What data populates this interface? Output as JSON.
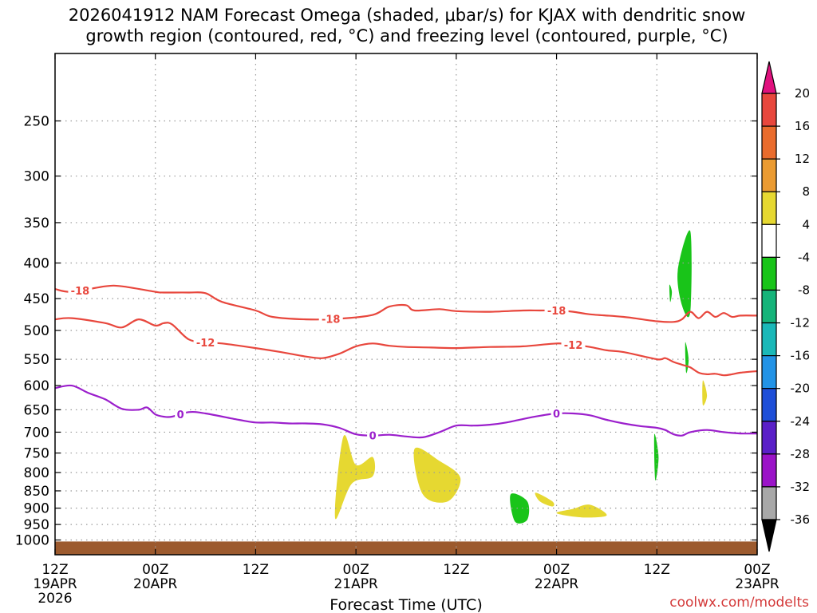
{
  "chart_data": {
    "type": "contour",
    "title_lines": [
      "2026041912 NAM Forecast Omega (shaded, μbar/s) for KJAX with dendritic snow",
      "growth region (contoured, red, °C) and freezing level (contoured, purple, °C)"
    ],
    "xlabel": "Forecast Time (UTC)",
    "credit": "coolwx.com/modelts",
    "xlim": [
      0,
      84
    ],
    "x_ticks": [
      {
        "h": 0,
        "line1": "12Z",
        "line2": "19APR",
        "line3": "2026"
      },
      {
        "h": 12,
        "line1": "00Z",
        "line2": "20APR",
        "line3": ""
      },
      {
        "h": 24,
        "line1": "12Z",
        "line2": "",
        "line3": ""
      },
      {
        "h": 36,
        "line1": "00Z",
        "line2": "21APR",
        "line3": ""
      },
      {
        "h": 48,
        "line1": "12Z",
        "line2": "",
        "line3": ""
      },
      {
        "h": 60,
        "line1": "00Z",
        "line2": "22APR",
        "line3": ""
      },
      {
        "h": 72,
        "line1": "12Z",
        "line2": "",
        "line3": ""
      },
      {
        "h": 84,
        "line1": "00Z",
        "line2": "23APR",
        "line3": ""
      }
    ],
    "y_axis": {
      "scale": "log",
      "top_hpa": 200,
      "bottom_hpa": 1050,
      "reversed": true
    },
    "y_ticks": [
      "250",
      "300",
      "350",
      "400",
      "450",
      "500",
      "550",
      "600",
      "650",
      "700",
      "750",
      "800",
      "850",
      "900",
      "950",
      "1000"
    ],
    "grid": true,
    "contours": [
      {
        "label": "-18",
        "color": "#e8473d",
        "x": [
          0,
          2,
          6,
          8,
          12,
          13,
          16,
          18,
          20,
          24,
          26,
          30,
          34,
          38,
          40,
          42,
          43,
          46,
          48,
          52,
          56,
          58,
          60,
          62,
          64,
          68,
          72,
          74,
          75,
          76,
          77,
          78,
          79,
          80,
          81,
          82,
          84
        ],
        "y": [
          436,
          440,
          432,
          432,
          440,
          441,
          441,
          442,
          455,
          468,
          478,
          482,
          481,
          475,
          462,
          460,
          468,
          466,
          469,
          470,
          468,
          468,
          468,
          470,
          474,
          478,
          485,
          486,
          482,
          470,
          480,
          470,
          478,
          472,
          478,
          476,
          476
        ],
        "label_x": [
          3,
          33,
          60
        ]
      },
      {
        "label": "-12",
        "color": "#e8473d",
        "x": [
          0,
          2,
          6,
          8,
          10,
          12,
          13,
          14,
          16,
          18,
          20,
          24,
          27,
          30,
          32,
          34,
          36,
          38,
          40,
          42,
          45,
          48,
          52,
          56,
          60,
          62,
          64,
          66,
          68,
          72,
          73,
          74,
          75,
          76,
          77,
          78,
          79,
          80,
          81,
          82,
          84
        ],
        "y": [
          482,
          480,
          488,
          495,
          482,
          492,
          488,
          490,
          515,
          520,
          522,
          530,
          537,
          545,
          548,
          540,
          527,
          522,
          526,
          528,
          529,
          530,
          528,
          527,
          522,
          524,
          528,
          534,
          537,
          550,
          548,
          555,
          560,
          565,
          575,
          578,
          577,
          580,
          578,
          575,
          572
        ],
        "label_x": [
          18,
          62
        ]
      },
      {
        "label": "0",
        "color": "#9b1fcc",
        "x": [
          0,
          2,
          4,
          6,
          8,
          10,
          11,
          12,
          13,
          14,
          16,
          18,
          22,
          24,
          26,
          28,
          30,
          32,
          34,
          36,
          38,
          40,
          42,
          44,
          46,
          48,
          50,
          52,
          54,
          56,
          58,
          60,
          62,
          64,
          66,
          68,
          70,
          72,
          73,
          74,
          75,
          76,
          78,
          80,
          82,
          84
        ],
        "y": [
          605,
          600,
          615,
          628,
          648,
          650,
          645,
          660,
          665,
          665,
          655,
          658,
          672,
          678,
          678,
          680,
          680,
          682,
          690,
          705,
          708,
          706,
          710,
          712,
          700,
          685,
          685,
          683,
          678,
          670,
          663,
          658,
          658,
          662,
          672,
          680,
          686,
          690,
          695,
          705,
          708,
          700,
          695,
          700,
          703,
          703
        ],
        "label_x": [
          15,
          38,
          60
        ]
      }
    ],
    "shaded_regions": [
      {
        "band": "4 to 8",
        "color": "#e6d831",
        "t": [
          34.5,
          36,
          38,
          38,
          35.5,
          33.5
        ],
        "p": [
          710,
          780,
          760,
          810,
          830,
          930
        ]
      },
      {
        "band": "4 to 8",
        "color": "#e6d831",
        "t": [
          43,
          46,
          48.5,
          47,
          44
        ],
        "p": [
          740,
          770,
          815,
          880,
          860
        ]
      },
      {
        "band": "4 to 8",
        "color": "#e6d831",
        "t": [
          57.5,
          59.5,
          59.5,
          58
        ],
        "p": [
          855,
          880,
          895,
          880
        ]
      },
      {
        "band": "4 to 8",
        "color": "#e6d831",
        "t": [
          60,
          62,
          64,
          66,
          63
        ],
        "p": [
          915,
          902,
          890,
          922,
          928
        ]
      },
      {
        "band": "4 to 8",
        "color": "#e6d831",
        "t": [
          77.5,
          78,
          77.5
        ],
        "p": [
          590,
          620,
          640
        ]
      },
      {
        "band": "-8 to -4",
        "color": "#19c419",
        "t": [
          54.5,
          56.5,
          56.5,
          55
        ],
        "p": [
          860,
          880,
          935,
          940
        ]
      },
      {
        "band": "-8 to -4",
        "color": "#19c419",
        "t": [
          71.7,
          72.2,
          71.8
        ],
        "p": [
          705,
          760,
          820
        ]
      },
      {
        "band": "-8 to -4",
        "color": "#19c419",
        "t": [
          74.5,
          76,
          76,
          75
        ],
        "p": [
          410,
          360,
          470,
          460
        ]
      },
      {
        "band": "-8 to -4",
        "color": "#19c419",
        "t": [
          73.5,
          73.8,
          73.6
        ],
        "p": [
          430,
          440,
          455
        ]
      },
      {
        "band": "-8 to -4",
        "color": "#19c419",
        "t": [
          75.4,
          75.8,
          75.5
        ],
        "p": [
          520,
          550,
          575
        ]
      }
    ],
    "terrain": {
      "color": "#9c5a2e",
      "top_hpa": 1005
    },
    "colorbar": {
      "labels": [
        "20",
        "16",
        "12",
        "8",
        "4",
        "-4",
        "-8",
        "-12",
        "-16",
        "-20",
        "-24",
        "-28",
        "-32",
        "-36"
      ],
      "colors": [
        "#e8473d",
        "#ea6c2d",
        "#eb9b32",
        "#e6d831",
        "#ffffff",
        "#19c419",
        "#15b47a",
        "#1ab8b8",
        "#2293e6",
        "#1e4fd8",
        "#5a1fc8",
        "#9b13c8",
        "#a8a8a8"
      ],
      "top_triangle_color": "#e0117e",
      "bottom_triangle_color": "#000000"
    }
  }
}
